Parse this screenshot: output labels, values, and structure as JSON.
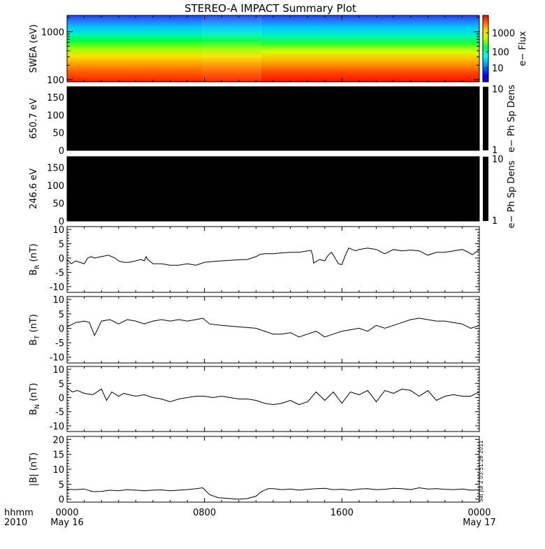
{
  "title": "STEREO-A IMPACT Summary Plot",
  "footer": {
    "hhmm_label": "hhmm",
    "year_label": "2010",
    "stamp": "Sat Jul  2 03:51:26 2011"
  },
  "colors": {
    "background": "#ffffff",
    "axes": "#000000",
    "trace": "#000000",
    "empty_panel": "#000000",
    "colormap": [
      "#ff0000",
      "#ff8000",
      "#ffff00",
      "#00ff00",
      "#00ffff",
      "#0080ff",
      "#0000ff"
    ]
  },
  "chart_data": [
    {
      "name": "swea",
      "type": "heatmap",
      "ylabel": "SWEA (eV)",
      "y_scale": "log",
      "ylim": [
        90,
        2200
      ],
      "y_ticks": [
        100,
        1000
      ],
      "y_tick_labels": [
        "100",
        "1000"
      ],
      "colorbar_label": "e− Flux",
      "colorbar_scale": "log",
      "colorbar_ticks": [
        "10",
        "100",
        "1000"
      ],
      "x_breaks_hours": [
        7.9,
        11.3
      ],
      "grid": false
    },
    {
      "name": "ch-650",
      "type": "heatmap",
      "ylabel": "650.7 eV",
      "ylim": [
        0,
        180
      ],
      "y_ticks": [
        0,
        50,
        100,
        150
      ],
      "colorbar_label": "e− Ph Sp Dens",
      "colorbar_ticks": [
        "1",
        "10"
      ],
      "fill": "empty",
      "grid": false
    },
    {
      "name": "ch-246",
      "type": "heatmap",
      "ylabel": "246.6 eV",
      "ylim": [
        0,
        180
      ],
      "y_ticks": [
        0,
        50,
        100,
        150
      ],
      "colorbar_label": "e− Ph Sp Dens",
      "colorbar_ticks": [
        "1",
        "10"
      ],
      "fill": "empty",
      "grid": false
    },
    {
      "name": "br",
      "type": "line",
      "ylabel": "B",
      "ylabel_sub": "R",
      "ylabel_unit": "(nT)",
      "ylim": [
        -12,
        11
      ],
      "y_ticks": [
        -10,
        -5,
        0,
        5,
        10
      ],
      "x": [
        0,
        0.25,
        0.5,
        0.75,
        1,
        1.2,
        1.4,
        1.6,
        2,
        2.4,
        2.8,
        3,
        3.3,
        3.6,
        4,
        4.3,
        4.5,
        4.6,
        4.7,
        5,
        5.5,
        6,
        6.5,
        7,
        7.5,
        8,
        8.5,
        9,
        9.5,
        10,
        10.5,
        11,
        11.1,
        11.2,
        11.5,
        12,
        12.5,
        13,
        13.5,
        14,
        14.2,
        14.3,
        14.35,
        14.5,
        14.7,
        15,
        15.2,
        15.4,
        15.8,
        16,
        16.2,
        16.4,
        16.6,
        16.8,
        17,
        17.5,
        18,
        18.5,
        19,
        19.5,
        20,
        20.5,
        21,
        21.5,
        22,
        22.5,
        23,
        23.3,
        23.6,
        24
      ],
      "y": [
        -0.5,
        -2,
        -1,
        -1.5,
        -2,
        0,
        0.5,
        0,
        0.5,
        1,
        0,
        -1,
        -1.5,
        -1.5,
        -1,
        -0.5,
        -1,
        0.5,
        -0.5,
        -2,
        -2,
        -2.5,
        -2.5,
        -2,
        -2.5,
        -1.5,
        -1.2,
        -1,
        -0.8,
        -0.6,
        -0.5,
        0.5,
        0.8,
        1.2,
        1.5,
        1.5,
        1.8,
        2,
        2,
        2.5,
        2.7,
        1,
        -1.8,
        -1.2,
        -0.5,
        -1,
        1,
        2,
        -2,
        -2.3,
        1,
        3.5,
        3,
        2.5,
        3,
        3.5,
        3,
        1.5,
        3,
        2.5,
        2.8,
        2.5,
        1,
        2,
        2,
        2.5,
        3,
        2.2,
        1.2,
        3
      ]
    },
    {
      "name": "bt",
      "type": "line",
      "ylabel": "B",
      "ylabel_sub": "T",
      "ylabel_unit": "(nT)",
      "ylim": [
        -12,
        11
      ],
      "y_ticks": [
        -10,
        -5,
        0,
        5,
        10
      ],
      "x": [
        0,
        0.5,
        1,
        1.3,
        1.6,
        2,
        2.5,
        3,
        3.5,
        4,
        4.5,
        5,
        5.5,
        6,
        6.5,
        7,
        7.5,
        7.9,
        8.3,
        9,
        10,
        11,
        11.5,
        12,
        12.5,
        13,
        13.5,
        14,
        14.5,
        15,
        15.5,
        16,
        16.5,
        17,
        17.5,
        18,
        18.5,
        19,
        19.5,
        20,
        20.5,
        21,
        21.5,
        22,
        22.5,
        23,
        23.5,
        24
      ],
      "y": [
        0.5,
        2,
        2.5,
        2,
        -2.5,
        2.5,
        3,
        1.5,
        3,
        2.5,
        1.5,
        2.5,
        3,
        2.5,
        3,
        2.5,
        3,
        3.5,
        1.5,
        1,
        0.5,
        0,
        -1,
        -2,
        -2,
        -1.5,
        -3,
        -2,
        -1,
        -3,
        -2,
        -1,
        -0.5,
        0,
        -1,
        1,
        0,
        1,
        2,
        3,
        3.5,
        3,
        2.5,
        2.5,
        2,
        1.5,
        0,
        1
      ]
    },
    {
      "name": "bn",
      "type": "line",
      "ylabel": "B",
      "ylabel_sub": "N",
      "ylabel_unit": "(nT)",
      "ylim": [
        -12,
        11
      ],
      "y_ticks": [
        -10,
        -5,
        0,
        5,
        10
      ],
      "x": [
        0,
        0.3,
        0.6,
        1,
        1.5,
        2,
        2.3,
        2.6,
        3,
        3.3,
        3.6,
        4,
        4.5,
        5,
        5.5,
        6,
        6.5,
        7,
        7.5,
        8,
        8.5,
        9,
        9.5,
        10,
        10.5,
        11,
        11.5,
        12,
        12.5,
        13,
        13.5,
        14,
        14.5,
        15,
        15.5,
        16,
        16.5,
        17,
        17.5,
        18,
        18.5,
        19,
        19.5,
        20,
        20.5,
        21,
        21.5,
        22,
        22.5,
        23,
        23.5,
        24
      ],
      "y": [
        3.5,
        2,
        2.5,
        1.5,
        1,
        3,
        -1,
        2,
        0.5,
        1.5,
        1,
        0.5,
        1,
        0,
        -0.5,
        -1.5,
        -0.5,
        0,
        0.5,
        0.5,
        0,
        0.5,
        0,
        -0.5,
        -0.5,
        -1,
        -2,
        -2.5,
        -2,
        -1,
        -2.5,
        -1.5,
        2,
        -1,
        2,
        -2,
        2,
        1,
        2.5,
        -1.5,
        2.5,
        1.5,
        3,
        2.5,
        0.5,
        2.5,
        -1,
        0.5,
        1,
        0.5,
        0.5,
        2
      ]
    },
    {
      "name": "bmag",
      "type": "line",
      "ylabel": "|B|",
      "ylabel_unit": "(nT)",
      "ylim": [
        -1,
        21
      ],
      "y_ticks": [
        0,
        5,
        10,
        15,
        20
      ],
      "x": [
        0,
        0.5,
        1,
        1.5,
        2,
        2.5,
        3,
        3.5,
        4,
        4.5,
        5,
        5.5,
        6,
        6.5,
        7,
        7.5,
        7.9,
        8.3,
        8.8,
        9.5,
        10,
        10.5,
        11,
        11.3,
        11.7,
        12,
        12.5,
        13,
        13.5,
        14,
        14.5,
        15,
        15.5,
        16,
        16.5,
        17,
        17.5,
        18,
        18.5,
        19,
        19.5,
        20,
        20.5,
        21,
        21.5,
        22,
        22.5,
        23,
        23.5,
        24
      ],
      "y": [
        3.3,
        3.2,
        3.4,
        2.5,
        2.6,
        3,
        2.8,
        3.2,
        3,
        2.8,
        3,
        3.1,
        2.8,
        3,
        3.2,
        3.5,
        3.8,
        1.5,
        0.5,
        0.2,
        0,
        0.2,
        1,
        2.5,
        3.5,
        3.5,
        3.2,
        3.4,
        3,
        3.3,
        3.5,
        3.6,
        3.2,
        3.3,
        3,
        3.4,
        3.5,
        3.2,
        3.3,
        3.6,
        3.5,
        3.2,
        3.8,
        3.4,
        3.5,
        3.3,
        3.2,
        3.4,
        3,
        3.1
      ]
    }
  ],
  "x_axis": {
    "range_hours": [
      0,
      24
    ],
    "ticks": [
      {
        "hour": 0,
        "label": "0000",
        "sub": "May 16"
      },
      {
        "hour": 8,
        "label": "0800",
        "sub": ""
      },
      {
        "hour": 16,
        "label": "1600",
        "sub": ""
      },
      {
        "hour": 24,
        "label": "0000",
        "sub": "May 17"
      }
    ],
    "minor_step_hours": 1
  }
}
